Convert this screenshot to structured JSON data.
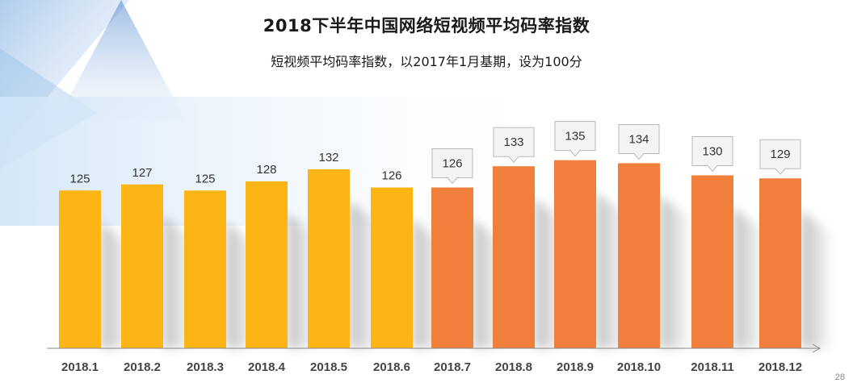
{
  "page": {
    "title": "2018下半年中国网络短视频平均码率指数",
    "subtitle": "短视频平均码率指数，以2017年1月基期，设为100分",
    "page_number": "28"
  },
  "colors": {
    "first_half": "#FDB515",
    "second_half": "#EF7F3A",
    "axis": "#888888",
    "label": "#333333",
    "callout_fill": "#f4f4f4",
    "callout_stroke": "#b8b8b8"
  },
  "chart_data": {
    "type": "bar",
    "title": "2018下半年中国网络短视频平均码率指数",
    "subtitle": "短视频平均码率指数，以2017年1月基期，设为100分",
    "categories": [
      "2018.1",
      "2018.2",
      "2018.3",
      "2018.4",
      "2018.5",
      "2018.6",
      "2018.7",
      "2018.8",
      "2018.9",
      "2018.10",
      "2018.11",
      "2018.12"
    ],
    "values": [
      125,
      127,
      125,
      128,
      132,
      126,
      126,
      133,
      135,
      134,
      130,
      129
    ],
    "groups": [
      "first",
      "first",
      "first",
      "first",
      "first",
      "first",
      "second",
      "second",
      "second",
      "second",
      "second",
      "second"
    ],
    "callout_labels": [
      false,
      false,
      false,
      false,
      false,
      false,
      true,
      true,
      true,
      true,
      true,
      true
    ],
    "xlabel": "",
    "ylabel": "",
    "grid": false,
    "legend": "none"
  }
}
